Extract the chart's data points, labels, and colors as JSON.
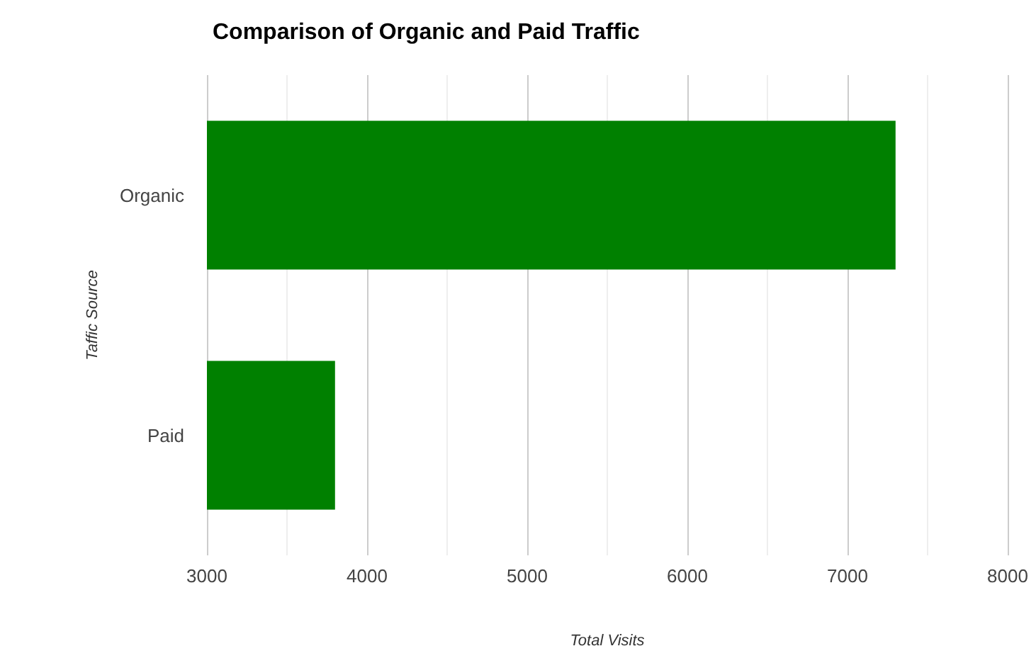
{
  "chart_data": {
    "type": "bar",
    "orientation": "horizontal",
    "title": "Comparison of Organic and Paid Traffic",
    "xlabel": "Total Visits",
    "ylabel": "Taffic Source",
    "categories": [
      "Organic",
      "Paid"
    ],
    "values": [
      7300,
      3800
    ],
    "color": "#008000",
    "xlim": [
      3000,
      8000
    ],
    "xticks": [
      3000,
      {
        "value": 3500,
        "label": null
      },
      4000,
      {
        "value": 4500,
        "label": null
      },
      5000,
      {
        "value": 5500,
        "label": null
      },
      6000,
      {
        "value": 6500,
        "label": null
      },
      7000,
      {
        "value": 7500,
        "label": null
      },
      8000
    ],
    "grid": true
  }
}
